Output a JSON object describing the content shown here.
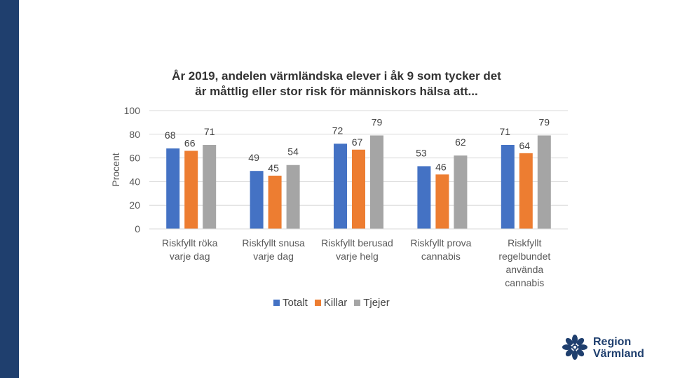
{
  "chart_data": {
    "type": "bar",
    "title_line1": "År 2019, andelen värmländska elever i åk 9 som tycker det",
    "title_line2": "är måttlig eller stor risk för människors hälsa att...",
    "ylabel": "Procent",
    "xlabel": "",
    "ylim": [
      0,
      100
    ],
    "yticks": [
      0,
      20,
      40,
      60,
      80,
      100
    ],
    "grid": true,
    "legend_position": "bottom",
    "categories": [
      [
        "Riskfyllt röka",
        "varje dag"
      ],
      [
        "Riskfyllt snusa",
        "varje dag"
      ],
      [
        "Riskfyllt berusad",
        "varje helg"
      ],
      [
        "Riskfyllt prova",
        "cannabis"
      ],
      [
        "Riskfyllt",
        "regelbundet",
        "använda",
        "cannabis"
      ]
    ],
    "series": [
      {
        "name": "Totalt",
        "color": "#4472c4",
        "values": [
          68,
          49,
          72,
          53,
          71
        ]
      },
      {
        "name": "Killar",
        "color": "#ed7d31",
        "values": [
          66,
          45,
          67,
          46,
          64
        ]
      },
      {
        "name": "Tjejer",
        "color": "#a5a5a5",
        "values": [
          71,
          54,
          79,
          62,
          79
        ]
      }
    ]
  },
  "branding": {
    "logo_line1": "Region",
    "logo_line2": "Värmland",
    "sidebar_color": "#1f3f6e"
  }
}
